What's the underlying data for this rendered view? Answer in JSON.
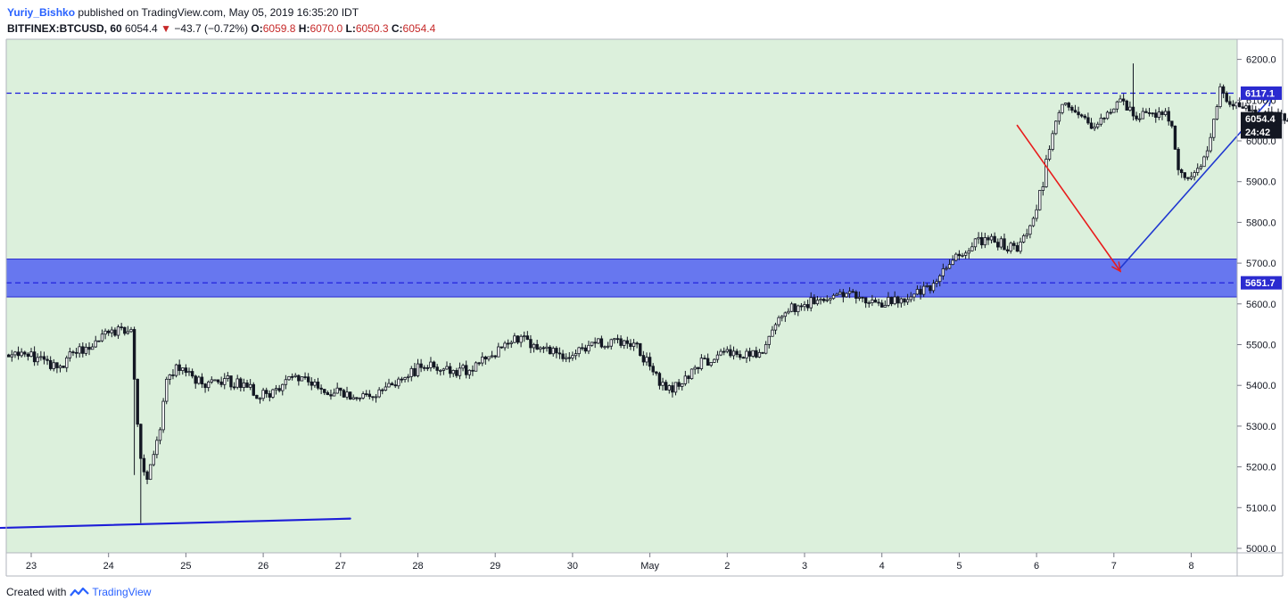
{
  "header": {
    "author": "Yuriy_Bishko",
    "published_text": "published on TradingView.com, May 05, 2019 16:35:20 IDT",
    "symbol": "BITFINEX:BTCUSD, 60",
    "last": "6054.4",
    "change": "−43.7 (−0.72%)",
    "o_label": "O:",
    "o_value": "6059.8",
    "h_label": "H:",
    "h_value": "6070.0",
    "l_label": "L:",
    "l_value": "6050.3",
    "c_label": "C:",
    "c_value": "6054.4"
  },
  "footer": {
    "created_with": "Created with",
    "brand": "TradingView"
  },
  "colors": {
    "background": "#dcf0dc",
    "candle": "#131722",
    "zone": "#5c6cf0",
    "dash": "#1a1adc",
    "trend_line": "#1e1ed8",
    "down_arrow": "#e81c1c",
    "up_arrow": "#2038d0"
  },
  "chart_data": {
    "type": "candlestick",
    "symbol": "BITFINEX:BTCUSD",
    "interval": "60",
    "x_ticks": [
      "23",
      "24",
      "25",
      "26",
      "27",
      "28",
      "29",
      "30",
      "May",
      "2",
      "3",
      "4",
      "5",
      "6",
      "7",
      "8"
    ],
    "y_ticks": [
      5000.0,
      5100.0,
      5200.0,
      5300.0,
      5400.0,
      5500.0,
      5600.0,
      5700.0,
      5800.0,
      5900.0,
      6000.0,
      6100.0,
      6200.0
    ],
    "ylim": [
      4975,
      6265
    ],
    "xlim_days": [
      -0.33,
      4.0
    ],
    "hour_range": [
      -7,
      398
    ],
    "price_labels": [
      {
        "text": "6117.1",
        "value": 6117.1
      },
      {
        "text": "6054.4",
        "value": 6054.4
      },
      {
        "text": "24:42",
        "value": 6022
      }
    ],
    "zone": {
      "low": 5617,
      "high": 5710,
      "label": "5651.7",
      "mid": 5651.7
    },
    "resistance": {
      "value": 6117.1
    },
    "trend_line": {
      "from": {
        "hour": -96,
        "price": 5032
      },
      "to": {
        "hour": 99,
        "price": 5073
      }
    },
    "forecast_down": {
      "from": {
        "hour": 306,
        "price": 6038
      },
      "to": {
        "hour": 338,
        "price": 5680
      }
    },
    "forecast_up": {
      "from": {
        "hour": 338,
        "price": 5688
      },
      "to": {
        "hour": 385,
        "price": 6108
      }
    },
    "forecast_red_tail": {
      "from": {
        "hour": 411,
        "price": 6084
      },
      "to": {
        "hour": 450,
        "price": 6075
      }
    },
    "anchors": [
      [
        -97,
        5345
      ],
      [
        -93,
        5395
      ],
      [
        -88,
        5418
      ],
      [
        -80,
        5402
      ],
      [
        -76,
        5445
      ],
      [
        -74,
        5558
      ],
      [
        -71,
        5598
      ],
      [
        -66,
        5612
      ],
      [
        -60,
        5628
      ],
      [
        -55,
        5636
      ],
      [
        -50,
        5630
      ],
      [
        -45,
        5600
      ],
      [
        -42,
        5568
      ],
      [
        -39,
        5585
      ],
      [
        -36,
        5628
      ],
      [
        -33,
        5642
      ],
      [
        -29,
        5612
      ],
      [
        -27,
        5535
      ],
      [
        -24,
        5482
      ],
      [
        -19,
        5468
      ],
      [
        -14,
        5488
      ],
      [
        -9,
        5470
      ],
      [
        -4,
        5482
      ],
      [
        0,
        5475
      ],
      [
        3,
        5460
      ],
      [
        6,
        5445
      ],
      [
        10,
        5452
      ],
      [
        13,
        5485
      ],
      [
        16,
        5488
      ],
      [
        20,
        5510
      ],
      [
        25,
        5530
      ],
      [
        28,
        5545
      ],
      [
        31,
        5525
      ],
      [
        32,
        5420
      ],
      [
        34,
        5215
      ],
      [
        36,
        5175
      ],
      [
        38,
        5230
      ],
      [
        40,
        5300
      ],
      [
        42,
        5420
      ],
      [
        45,
        5440
      ],
      [
        50,
        5420
      ],
      [
        55,
        5400
      ],
      [
        60,
        5412
      ],
      [
        65,
        5405
      ],
      [
        70,
        5380
      ],
      [
        74,
        5370
      ],
      [
        78,
        5398
      ],
      [
        82,
        5425
      ],
      [
        86,
        5405
      ],
      [
        92,
        5385
      ],
      [
        98,
        5380
      ],
      [
        104,
        5372
      ],
      [
        109,
        5385
      ],
      [
        114,
        5410
      ],
      [
        118,
        5432
      ],
      [
        122,
        5448
      ],
      [
        127,
        5442
      ],
      [
        132,
        5430
      ],
      [
        137,
        5445
      ],
      [
        142,
        5470
      ],
      [
        146,
        5495
      ],
      [
        150,
        5522
      ],
      [
        154,
        5508
      ],
      [
        158,
        5495
      ],
      [
        162,
        5480
      ],
      [
        166,
        5462
      ],
      [
        170,
        5488
      ],
      [
        175,
        5505
      ],
      [
        181,
        5508
      ],
      [
        187,
        5505
      ],
      [
        190,
        5470
      ],
      [
        193,
        5435
      ],
      [
        196,
        5400
      ],
      [
        199,
        5390
      ],
      [
        203,
        5420
      ],
      [
        207,
        5450
      ],
      [
        212,
        5470
      ],
      [
        216,
        5482
      ],
      [
        220,
        5475
      ],
      [
        225,
        5472
      ],
      [
        228,
        5490
      ],
      [
        230,
        5540
      ],
      [
        233,
        5580
      ],
      [
        236,
        5592
      ],
      [
        240,
        5595
      ],
      [
        244,
        5610
      ],
      [
        248,
        5620
      ],
      [
        252,
        5625
      ],
      [
        256,
        5615
      ],
      [
        260,
        5610
      ],
      [
        264,
        5605
      ],
      [
        268,
        5605
      ],
      [
        272,
        5618
      ],
      [
        276,
        5628
      ],
      [
        280,
        5638
      ],
      [
        284,
        5690
      ],
      [
        288,
        5725
      ],
      [
        292,
        5745
      ],
      [
        296,
        5755
      ],
      [
        300,
        5750
      ],
      [
        304,
        5738
      ],
      [
        306,
        5725
      ],
      [
        309,
        5780
      ],
      [
        312,
        5835
      ],
      [
        314,
        5900
      ],
      [
        316,
        5990
      ],
      [
        318,
        6055
      ],
      [
        320,
        6095
      ],
      [
        323,
        6080
      ],
      [
        326,
        6055
      ],
      [
        329,
        6035
      ],
      [
        332,
        6045
      ],
      [
        335,
        6075
      ],
      [
        338,
        6110
      ],
      [
        341,
        6070
      ],
      [
        344,
        6060
      ],
      [
        348,
        6068
      ],
      [
        352,
        6062
      ],
      [
        354,
        6040
      ],
      [
        356,
        5920
      ],
      [
        358,
        5915
      ],
      [
        361,
        5925
      ],
      [
        364,
        5950
      ],
      [
        367,
        6050
      ],
      [
        369,
        6120
      ],
      [
        371,
        6100
      ],
      [
        374,
        6085
      ],
      [
        378,
        6078
      ],
      [
        382,
        6060
      ],
      [
        386,
        6060
      ],
      [
        390,
        6055
      ]
    ]
  }
}
